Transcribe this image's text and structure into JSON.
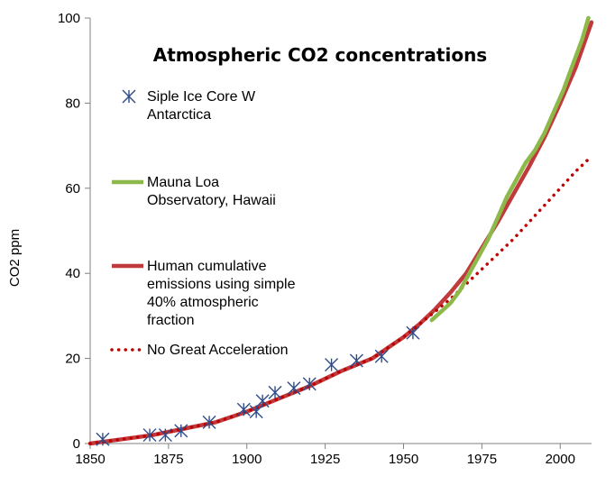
{
  "chart_data": {
    "type": "line",
    "title": "Atmospheric CO2 concentrations",
    "xlabel": "",
    "ylabel": "CO2 ppm",
    "xlim": [
      1850,
      2010
    ],
    "ylim": [
      0,
      100
    ],
    "xticks": [
      1850,
      1875,
      1900,
      1925,
      1950,
      1975,
      2000
    ],
    "yticks": [
      0,
      20,
      40,
      60,
      80,
      100
    ],
    "series": [
      {
        "name": "Siple Ice Core W Antarctica",
        "kind": "marker",
        "color": "#2E4C8A",
        "x": [
          1854,
          1869,
          1874,
          1879,
          1888,
          1899,
          1903,
          1905,
          1909,
          1915,
          1920,
          1927,
          1935,
          1943,
          1953
        ],
        "y": [
          1,
          2,
          2,
          3,
          5,
          8,
          7.5,
          10,
          12,
          13,
          14,
          18.5,
          19.5,
          20.5,
          26
        ]
      },
      {
        "name": "Mauna Loa Observatory, Hawaii",
        "kind": "line",
        "color": "#8DB84A",
        "x": [
          1959,
          1962,
          1965,
          1968,
          1971,
          1974,
          1977,
          1980,
          1983,
          1986,
          1989,
          1992,
          1995,
          1998,
          2001,
          2004,
          2007,
          2009
        ],
        "y": [
          29,
          31,
          33,
          36,
          40,
          44,
          48,
          53,
          58,
          62,
          66,
          69,
          73,
          78,
          83,
          89,
          95,
          100
        ]
      },
      {
        "name": "Human cumulative emissions using simple 40% atmospheric fraction",
        "kind": "line",
        "color": "#C0393B",
        "x": [
          1850,
          1860,
          1870,
          1880,
          1890,
          1900,
          1910,
          1920,
          1930,
          1940,
          1950,
          1955,
          1960,
          1965,
          1970,
          1975,
          1980,
          1985,
          1990,
          1995,
          2000,
          2005,
          2010
        ],
        "y": [
          0,
          1,
          2,
          3.5,
          5,
          7.5,
          10.5,
          13.5,
          17,
          20,
          25,
          28,
          31.5,
          35.5,
          40,
          46,
          52,
          58.5,
          65,
          72,
          80,
          88.5,
          99
        ]
      },
      {
        "name": "No Great Acceleration",
        "kind": "dotted",
        "color": "#C00000",
        "x": [
          1850,
          1860,
          1870,
          1880,
          1890,
          1900,
          1910,
          1920,
          1930,
          1940,
          1950,
          1955,
          1960,
          1965,
          1970,
          1975,
          1980,
          1985,
          1990,
          1995,
          2000,
          2005,
          2010
        ],
        "y": [
          0,
          1,
          2,
          3.5,
          5,
          7.5,
          10.5,
          13.5,
          17,
          20,
          25,
          28,
          31,
          34,
          37.5,
          41,
          44.5,
          48,
          52,
          56,
          60,
          64,
          67.5
        ]
      }
    ],
    "legend": [
      {
        "series": 0,
        "lines": [
          "Siple Ice Core W",
          "Antarctica"
        ]
      },
      {
        "series": 1,
        "lines": [
          "Mauna Loa",
          "Observatory, Hawaii"
        ]
      },
      {
        "series": 2,
        "lines": [
          "Human cumulative",
          "emissions using simple",
          "40% atmospheric",
          "fraction"
        ]
      },
      {
        "series": 3,
        "lines": [
          "No Great Acceleration"
        ]
      }
    ]
  }
}
